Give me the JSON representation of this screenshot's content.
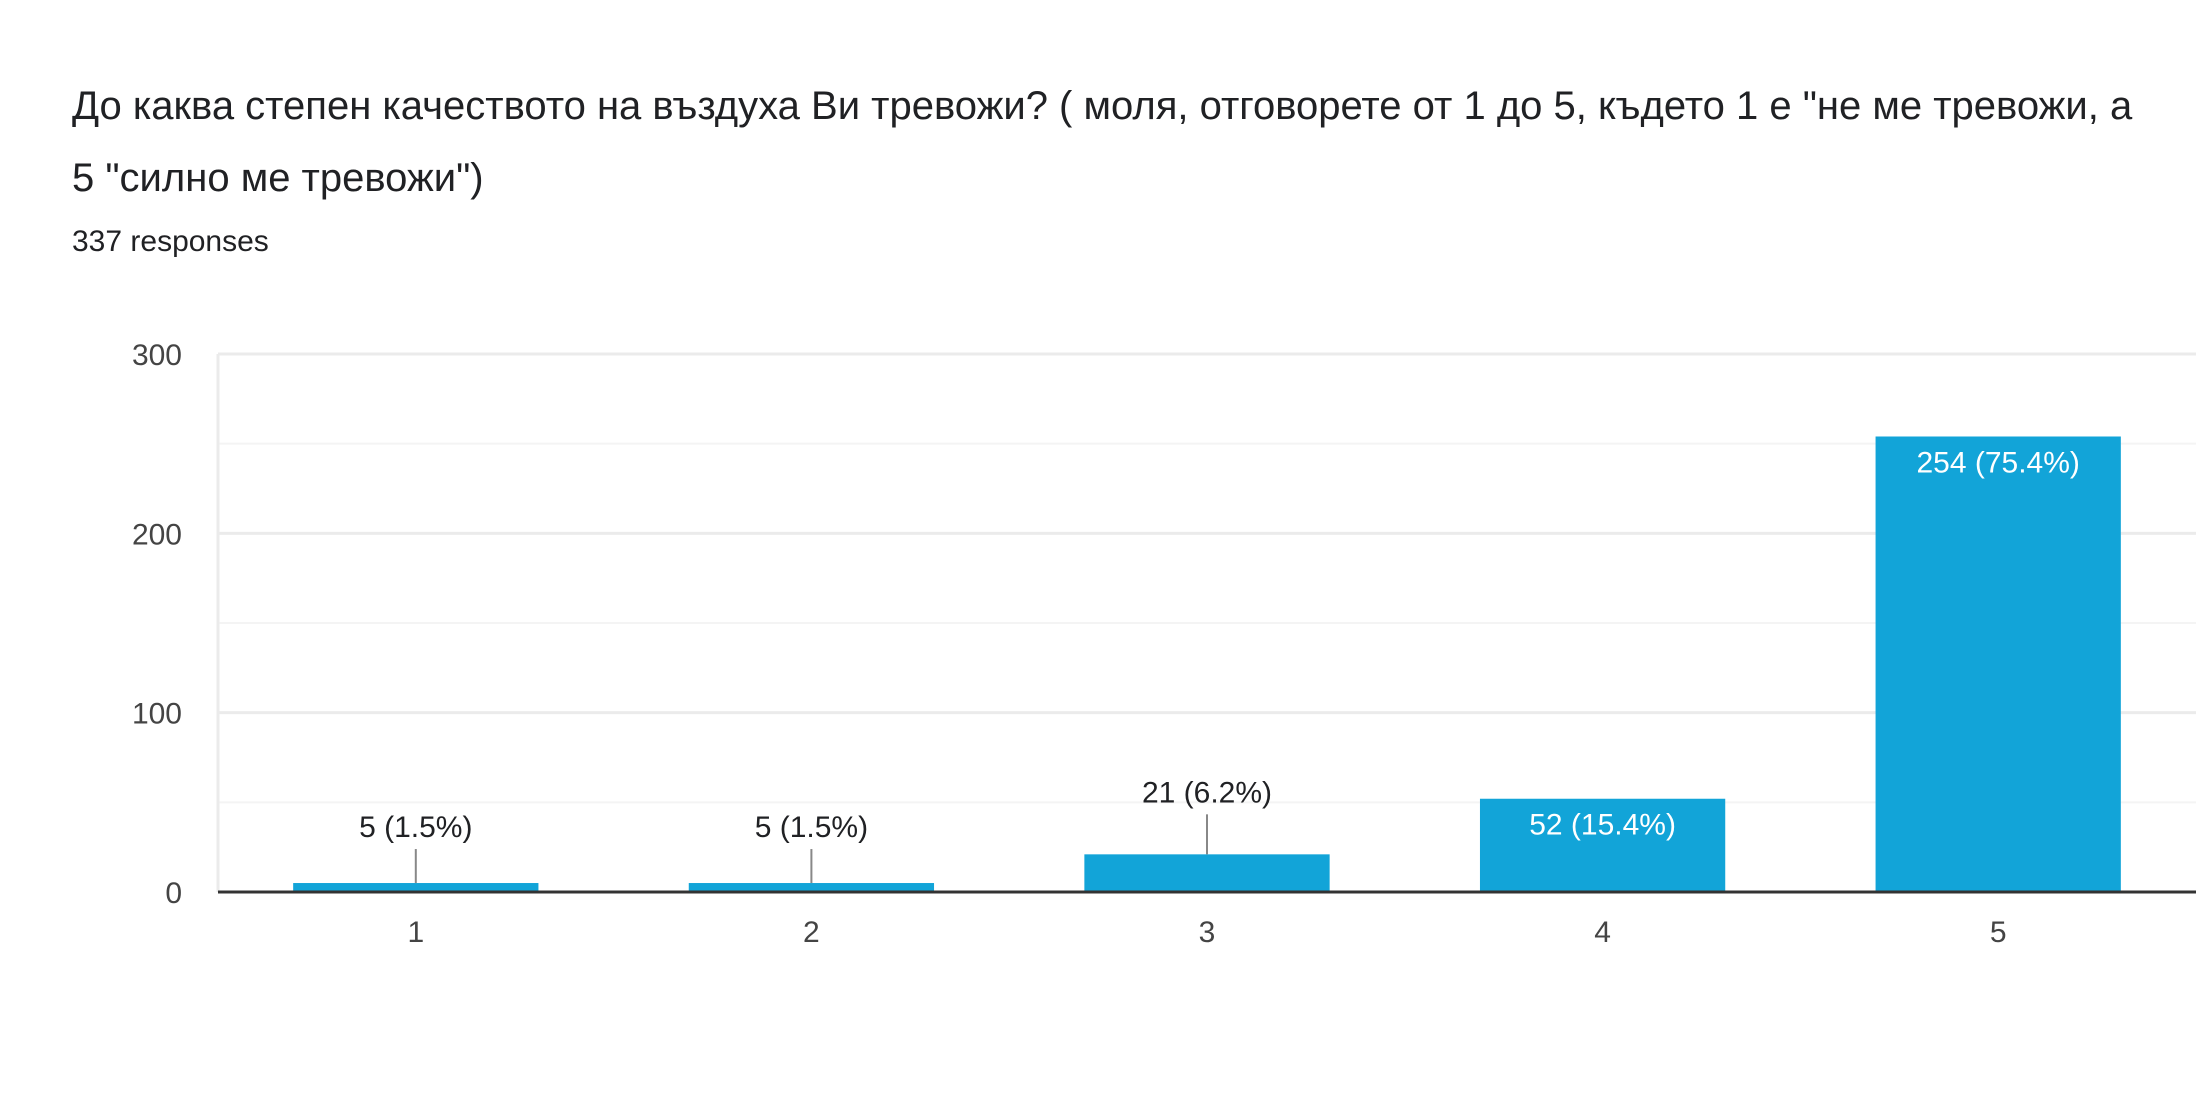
{
  "question": {
    "title": "До каква степен качеството на въздуха Ви тревожи? ( моля, отговорете от 1 до 5, където 1 е \"не ме тревожи, а 5 \"силно ме тревожи\")",
    "responses": "337 responses"
  },
  "colors": {
    "bar": "#12a4d8",
    "grid": "#ebebeb",
    "grid_minor": "#f4f4f4",
    "axis": "#333333",
    "leader": "#888888",
    "label_outside": "#202124",
    "label_inside": "#ffffff"
  },
  "chart_data": {
    "type": "bar",
    "categories": [
      "1",
      "2",
      "3",
      "4",
      "5"
    ],
    "values": [
      5,
      5,
      21,
      52,
      254
    ],
    "data_labels": [
      "5 (1.5%)",
      "5 (1.5%)",
      "21 (6.2%)",
      "52 (15.4%)",
      "254 (75.4%)"
    ],
    "title": "",
    "xlabel": "",
    "ylabel": "",
    "ylim": [
      0,
      300
    ],
    "yticks": [
      0,
      100,
      200,
      300
    ],
    "grid": true,
    "legend": "none"
  }
}
